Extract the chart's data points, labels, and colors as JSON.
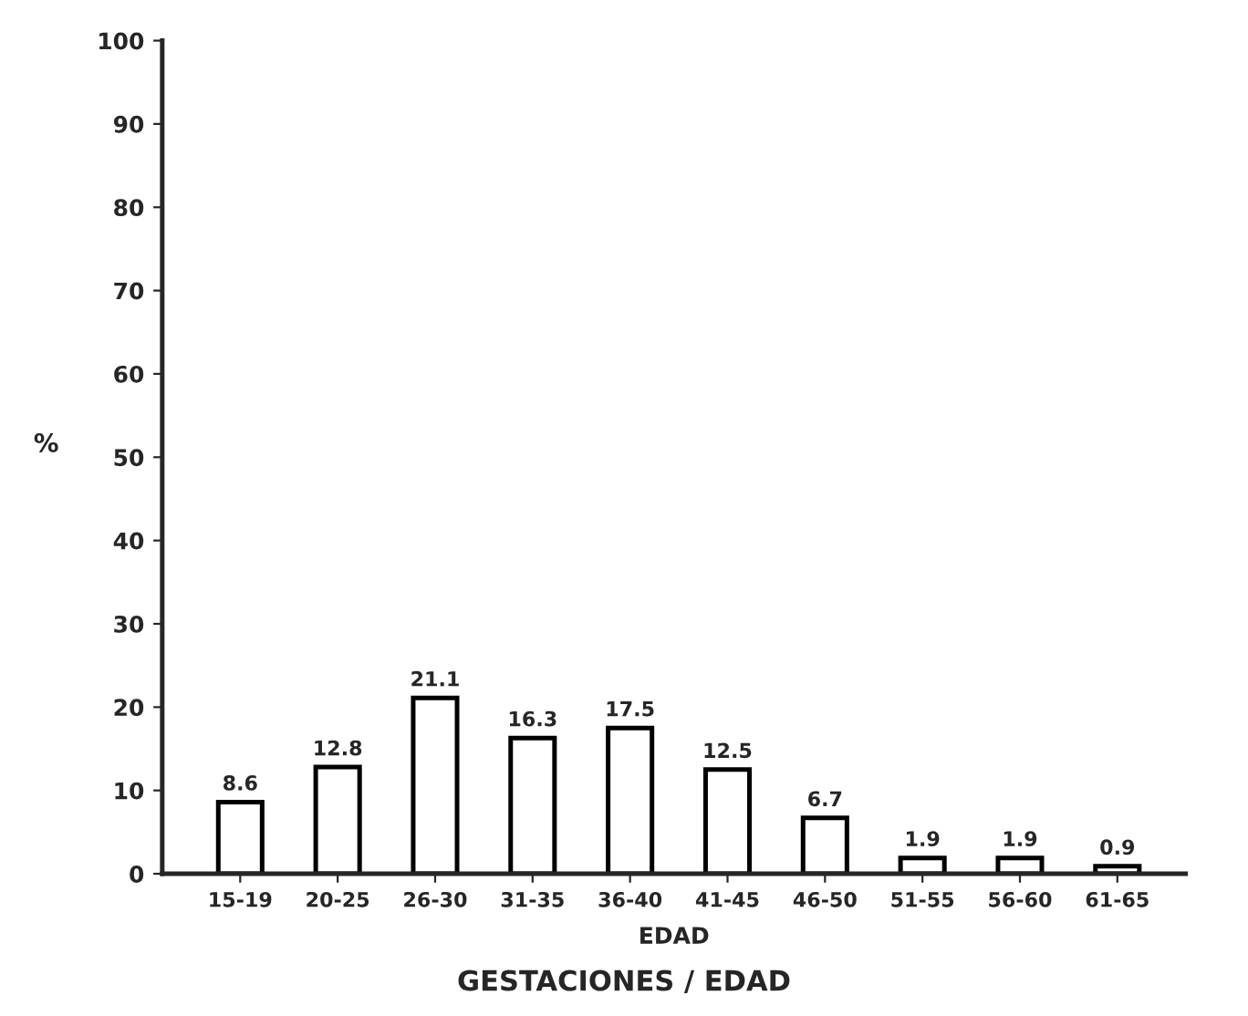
{
  "chart_data": {
    "type": "bar",
    "title": "GESTACIONES / EDAD",
    "xlabel": "EDAD",
    "ylabel": "%",
    "categories": [
      "15-19",
      "20-25",
      "26-30",
      "31-35",
      "36-40",
      "41-45",
      "46-50",
      "51-55",
      "56-60",
      "61-65"
    ],
    "values": [
      8.6,
      12.8,
      21.1,
      16.3,
      17.5,
      12.5,
      6.7,
      1.9,
      1.9,
      0.9
    ],
    "color": "#ffffff",
    "ylim": [
      0,
      100
    ],
    "yticks": [
      0,
      10,
      20,
      30,
      40,
      50,
      60,
      70,
      80,
      90,
      100
    ],
    "data_labels": true,
    "grid": false
  }
}
